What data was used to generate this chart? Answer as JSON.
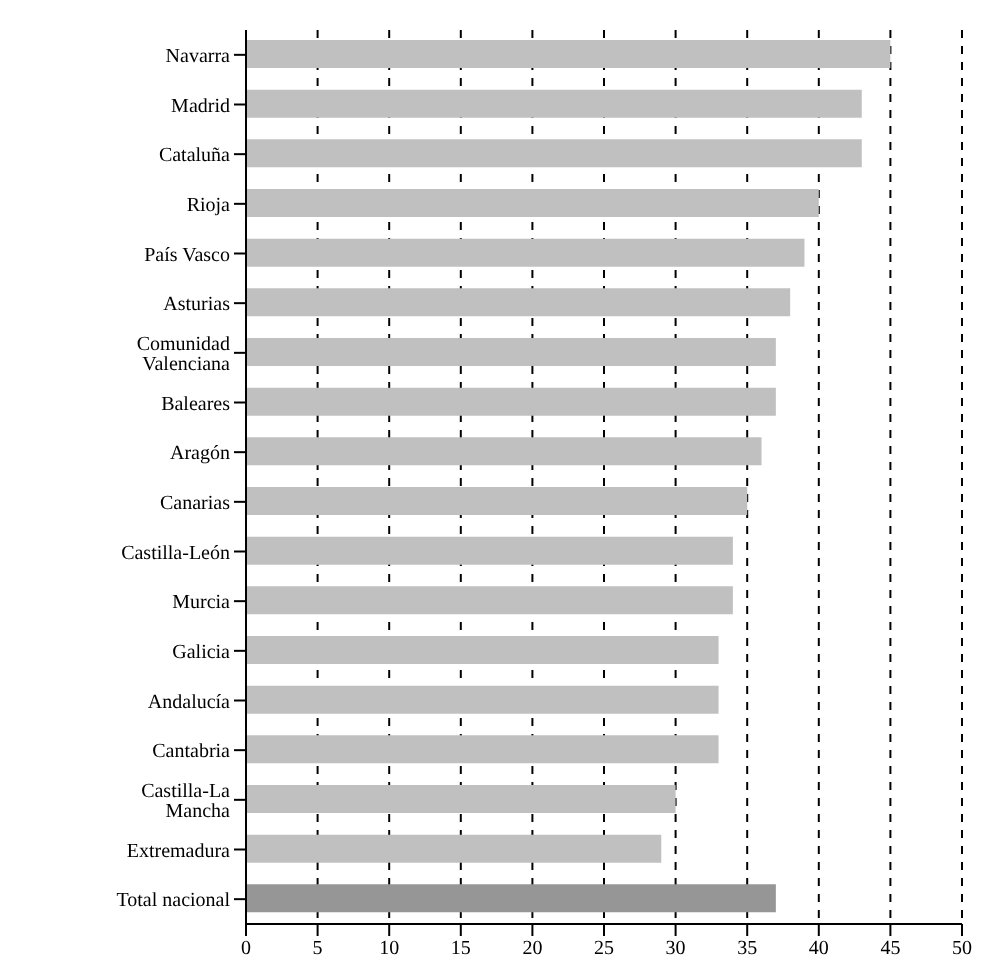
{
  "chart_data": {
    "type": "bar",
    "orientation": "horizontal",
    "categories": [
      "Navarra",
      "Madrid",
      "Cataluña",
      "Rioja",
      "País Vasco",
      "Asturias",
      "Comunidad Valenciana",
      "Baleares",
      "Aragón",
      "Canarias",
      "Castilla-León",
      "Murcia",
      "Galicia",
      "Andalucía",
      "Cantabria",
      "Castilla-La Mancha",
      "Extremadura",
      "Total nacional"
    ],
    "values": [
      45,
      43,
      43,
      40,
      39,
      38,
      37,
      37,
      36,
      35,
      34,
      34,
      33,
      33,
      33,
      30,
      29,
      37
    ],
    "colors": [
      "#c0c0c0",
      "#c0c0c0",
      "#c0c0c0",
      "#c0c0c0",
      "#c0c0c0",
      "#c0c0c0",
      "#c0c0c0",
      "#c0c0c0",
      "#c0c0c0",
      "#c0c0c0",
      "#c0c0c0",
      "#c0c0c0",
      "#c0c0c0",
      "#c0c0c0",
      "#c0c0c0",
      "#c0c0c0",
      "#c0c0c0",
      "#969696"
    ],
    "xlim": [
      0,
      50
    ],
    "xticks": [
      0,
      5,
      10,
      15,
      20,
      25,
      30,
      35,
      40,
      45,
      50
    ],
    "grid": "x",
    "legend": false
  }
}
